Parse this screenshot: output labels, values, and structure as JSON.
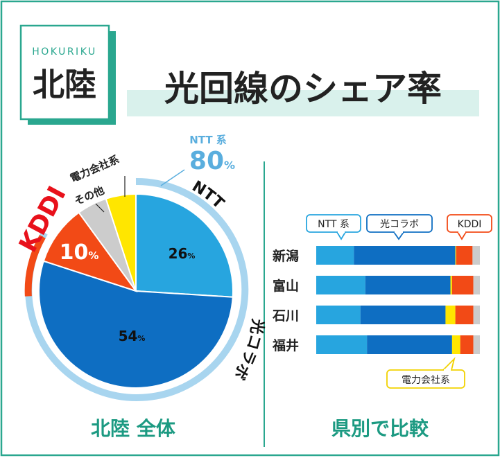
{
  "header": {
    "region_en": "HOKURIKU",
    "region_jp": "北陸",
    "title": "光回線のシェア率"
  },
  "colors": {
    "frame": "#2aa78f",
    "title_band": "#d9f1ec",
    "ntt": "#27a5df",
    "hikari_collab": "#0e6ec2",
    "kddi": "#f24a16",
    "other": "#cccccc",
    "power": "#ffe600",
    "ntt_ring": "#a8d5ef",
    "ntt_label": "#5aaede",
    "kddi_label": "#e8111b",
    "footer_text": "#1c9a82"
  },
  "pie": {
    "ntt_group_label": "NTT 系",
    "ntt_group_value": "80",
    "ntt_arc_label": "NTT",
    "hikari_arc_label": "光コラボ",
    "kddi_label": "KDDI",
    "power_label": "電力会社系",
    "other_label": "その他",
    "percent_sign": "%",
    "slice_labels": {
      "ntt": "26",
      "hikari": "54",
      "kddi": "10"
    }
  },
  "legend": {
    "ntt": "NTT 系",
    "hikari": "光コラボ",
    "kddi": "KDDI",
    "power": "電力会社系"
  },
  "footer": {
    "left": "北陸 全体",
    "right": "県別で比較"
  },
  "chart_data": [
    {
      "type": "pie",
      "title": "北陸 全体",
      "slices": [
        {
          "name": "NTT",
          "value": 26
        },
        {
          "name": "光コラボ",
          "value": 54
        },
        {
          "name": "KDDI",
          "value": 10
        },
        {
          "name": "その他",
          "value": 5
        },
        {
          "name": "電力会社系",
          "value": 5
        }
      ],
      "group": {
        "name": "NTT 系",
        "value": 80
      }
    },
    {
      "type": "bar",
      "stacked": true,
      "orientation": "horizontal",
      "title": "県別で比較",
      "categories": [
        "新潟",
        "富山",
        "石川",
        "福井"
      ],
      "series": [
        {
          "name": "NTT 系",
          "values": [
            23,
            30,
            27,
            31
          ]
        },
        {
          "name": "光コラボ",
          "values": [
            62,
            52,
            52,
            52
          ]
        },
        {
          "name": "電力会社系",
          "values": [
            0.5,
            1,
            6,
            5
          ]
        },
        {
          "name": "KDDI",
          "values": [
            10,
            13,
            11,
            8
          ]
        },
        {
          "name": "",
          "values": [
            4.5,
            4,
            4,
            4
          ]
        }
      ],
      "xlim": [
        0,
        100
      ]
    }
  ]
}
